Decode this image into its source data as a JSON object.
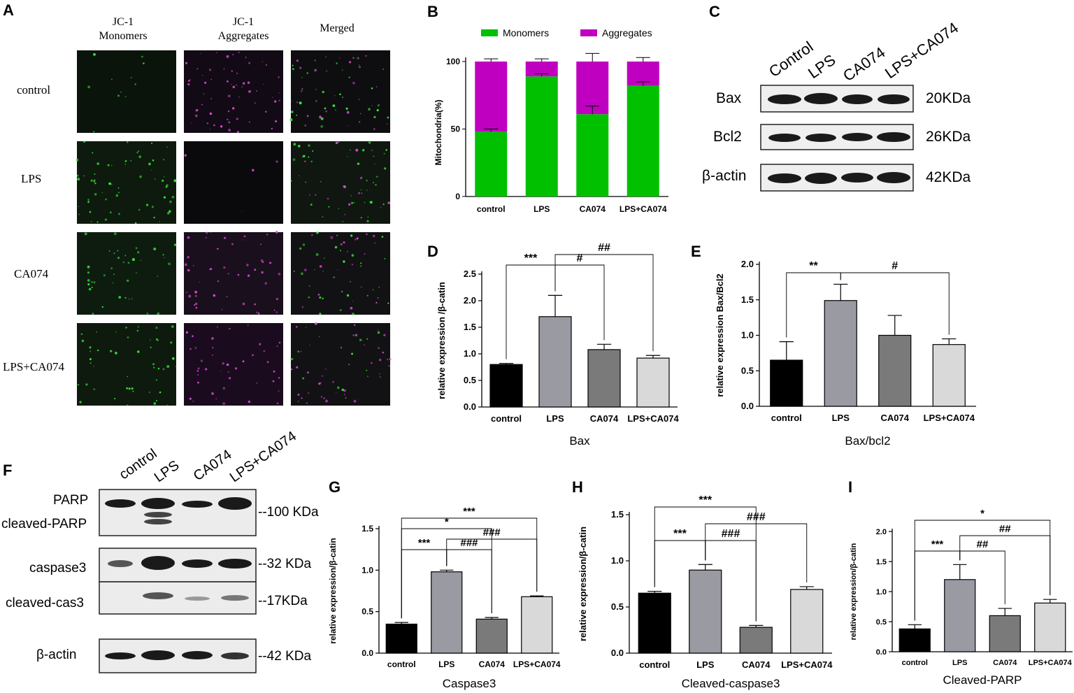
{
  "panels": {
    "A": {
      "label": "A",
      "columns": [
        "JC-1\nMonomers",
        "JC-1\nAggregates",
        "Merged"
      ],
      "rows": [
        "control",
        "LPS",
        "CA074",
        "LPS+CA074"
      ]
    },
    "B": {
      "label": "B",
      "legend": [
        "Monomers",
        "Aggregates"
      ]
    },
    "C": {
      "label": "C",
      "lanes": [
        "Control",
        "LPS",
        "CA074",
        "LPS+CA074"
      ],
      "rows": [
        {
          "name": "Bax",
          "kda": "20KDa"
        },
        {
          "name": "Bcl2",
          "kda": "26KDa"
        },
        {
          "name": "β-actin",
          "kda": "42KDa"
        }
      ]
    },
    "D": {
      "label": "D"
    },
    "E": {
      "label": "E"
    },
    "F": {
      "label": "F",
      "lanes": [
        "control",
        "LPS",
        "CA074",
        "LPS+CA074"
      ],
      "rows": [
        {
          "name": "PARP",
          "kda": "--100 KDa"
        },
        {
          "name": "cleaved-PARP",
          "kda": ""
        },
        {
          "name": "caspase3",
          "kda": "--32 KDa"
        },
        {
          "name": "cleaved-cas3",
          "kda": "--17KDa"
        },
        {
          "name": "β-actin",
          "kda": "--42 KDa"
        }
      ]
    },
    "G": {
      "label": "G"
    },
    "H": {
      "label": "H"
    },
    "I": {
      "label": "I"
    }
  },
  "colors": {
    "monomers": "#00c000",
    "aggregates": "#c000c0",
    "control": "#000000",
    "LPS": "#9a9aa3",
    "CA074": "#7a7a7a",
    "LPS+CA074": "#d9d9d9"
  },
  "chart_data": [
    {
      "id": "B",
      "type": "bar",
      "stacked": true,
      "categories": [
        "control",
        "LPS",
        "CA074",
        "LPS+CA074"
      ],
      "series": [
        {
          "name": "Monomers",
          "values": [
            48,
            89,
            61,
            82
          ],
          "err": [
            2,
            2,
            6,
            3
          ]
        },
        {
          "name": "Aggregates",
          "values": [
            52,
            11,
            39,
            18
          ],
          "err": [
            2,
            2,
            6,
            3
          ]
        }
      ],
      "xlabel": "",
      "ylabel": "Mitochondria(%)",
      "ylim": [
        0,
        100
      ],
      "yticks": [
        0,
        50,
        100
      ],
      "legend": "top"
    },
    {
      "id": "D",
      "type": "bar",
      "categories": [
        "control",
        "LPS",
        "CA074",
        "LPS+CA074"
      ],
      "values": [
        0.8,
        1.7,
        1.08,
        0.92
      ],
      "err": [
        0.02,
        0.4,
        0.1,
        0.05
      ],
      "xlabel": "Bax",
      "ylabel": "relative expression /β-catin",
      "ylim": [
        0,
        2.5
      ],
      "yticks": [
        0.0,
        0.5,
        1.0,
        1.5,
        2.0,
        2.5
      ],
      "brackets": [
        {
          "from": 0,
          "to": 1,
          "label": "***",
          "level": 0
        },
        {
          "from": 1,
          "to": 2,
          "label": "#",
          "level": 0
        },
        {
          "from": 1,
          "to": 3,
          "label": "##",
          "level": 1
        }
      ]
    },
    {
      "id": "E",
      "type": "bar",
      "categories": [
        "control",
        "LPS",
        "CA074",
        "LPS+CA074"
      ],
      "values": [
        0.65,
        1.49,
        1.0,
        0.87
      ],
      "err": [
        0.26,
        0.23,
        0.28,
        0.08
      ],
      "xlabel": "Bax/bcl2",
      "ylabel": "relative expression Bax/Bcl2",
      "ylim": [
        0,
        2.0
      ],
      "yticks": [
        0.0,
        0.5,
        1.0,
        1.5,
        2.0
      ],
      "brackets": [
        {
          "from": 0,
          "to": 1,
          "label": "**",
          "level": 0
        },
        {
          "from": 1,
          "to": 3,
          "label": "#",
          "level": 0
        }
      ]
    },
    {
      "id": "G",
      "type": "bar",
      "categories": [
        "control",
        "LPS",
        "CA074",
        "LPS+CA074"
      ],
      "values": [
        0.35,
        0.98,
        0.41,
        0.68
      ],
      "err": [
        0.02,
        0.02,
        0.02,
        0.01
      ],
      "xlabel": "Caspase3",
      "ylabel": "relative expression/β-catin",
      "ylim": [
        0,
        1.5
      ],
      "yticks": [
        0.0,
        0.5,
        1.0,
        1.5
      ],
      "brackets": [
        {
          "from": 0,
          "to": 1,
          "label": "***",
          "level": 0
        },
        {
          "from": 1,
          "to": 2,
          "label": "###",
          "level": 0
        },
        {
          "from": 1,
          "to": 3,
          "label": "###",
          "level": 1
        },
        {
          "from": 0,
          "to": 2,
          "label": "*",
          "level": 2
        },
        {
          "from": 0,
          "to": 3,
          "label": "***",
          "level": 3
        }
      ]
    },
    {
      "id": "H",
      "type": "bar",
      "categories": [
        "control",
        "LPS",
        "CA074",
        "LPS+CA074"
      ],
      "values": [
        0.65,
        0.9,
        0.28,
        0.69
      ],
      "err": [
        0.02,
        0.06,
        0.02,
        0.03
      ],
      "xlabel": "Cleaved-caspase3",
      "ylabel": "relative expression/β-catin",
      "ylim": [
        0,
        1.5
      ],
      "yticks": [
        0.0,
        0.5,
        1.0,
        1.5
      ],
      "brackets": [
        {
          "from": 0,
          "to": 1,
          "label": "***",
          "level": 0
        },
        {
          "from": 1,
          "to": 2,
          "label": "###",
          "level": 0
        },
        {
          "from": 1,
          "to": 3,
          "label": "###",
          "level": 1
        },
        {
          "from": 0,
          "to": 2,
          "label": "***",
          "level": 2
        }
      ]
    },
    {
      "id": "I",
      "type": "bar",
      "categories": [
        "control",
        "LPS",
        "CA074",
        "LPS+CA074"
      ],
      "values": [
        0.38,
        1.2,
        0.6,
        0.81
      ],
      "err": [
        0.07,
        0.25,
        0.12,
        0.06
      ],
      "xlabel": "Cleaved-PARP",
      "ylabel": "relative expression/β-catin",
      "ylim": [
        0,
        2.0
      ],
      "yticks": [
        0.0,
        0.5,
        1.0,
        1.5,
        2.0
      ],
      "brackets": [
        {
          "from": 0,
          "to": 1,
          "label": "***",
          "level": 0
        },
        {
          "from": 1,
          "to": 2,
          "label": "##",
          "level": 0
        },
        {
          "from": 1,
          "to": 3,
          "label": "##",
          "level": 1
        },
        {
          "from": 0,
          "to": 3,
          "label": "*",
          "level": 2
        }
      ]
    }
  ]
}
